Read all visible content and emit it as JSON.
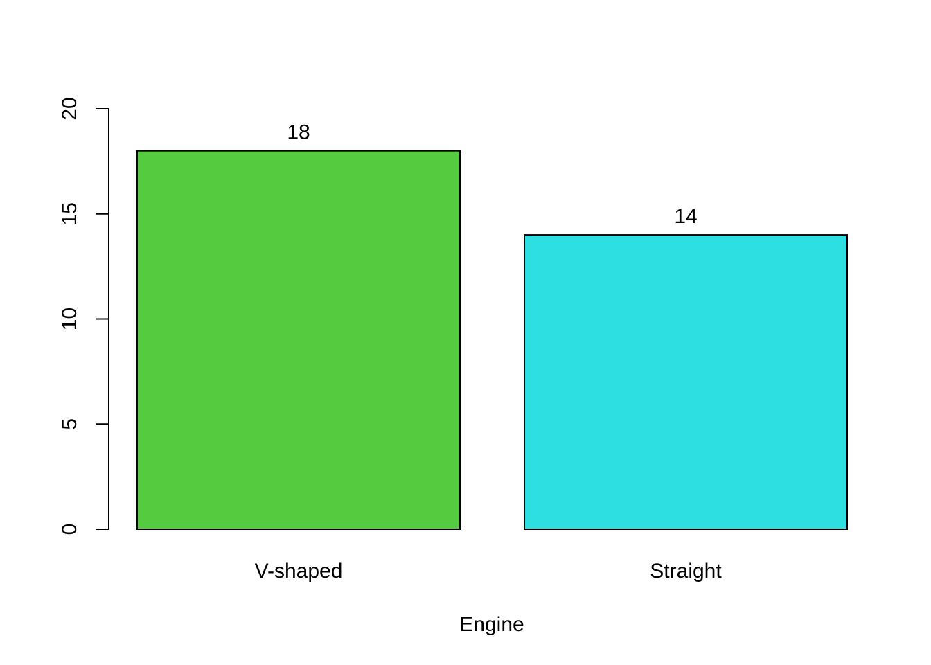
{
  "chart_data": {
    "type": "bar",
    "categories": [
      "V-shaped",
      "Straight"
    ],
    "values": [
      18,
      14
    ],
    "data_labels": [
      "18",
      "14"
    ],
    "colors": [
      "#55CC40",
      "#2DDFE0"
    ],
    "xlabel": "Engine",
    "ylabel": "",
    "ylim": [
      0,
      20
    ],
    "yticks": [
      0,
      5,
      10,
      15,
      20
    ],
    "ytick_labels": [
      "0",
      "5",
      "10",
      "15",
      "20"
    ],
    "grid": false,
    "legend": "none"
  }
}
